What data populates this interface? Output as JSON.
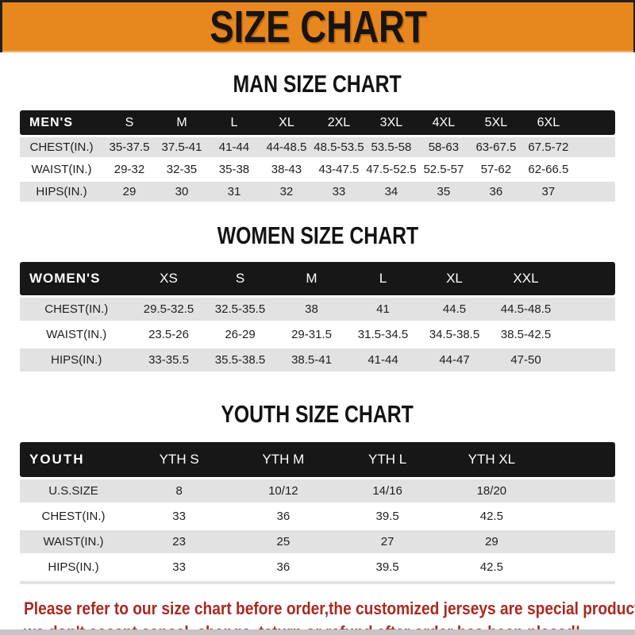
{
  "banner": {
    "title": "SIZE CHART",
    "bg_color": "#E8871E",
    "text_color": "#181410"
  },
  "colors": {
    "header_bg": "#171717",
    "header_text": "#FFFFFF",
    "row_gray": "#E2E2E2",
    "row_white": "#FFFFFF",
    "cell_text": "#1F1F1F",
    "notice_red": "#A82A22",
    "bottom_bar_gray": "#C5C5C5"
  },
  "sections": [
    {
      "id": "men",
      "heading": "MAN SIZE CHART",
      "table": {
        "header": [
          "MEN'S",
          "S",
          "M",
          "L",
          "XL",
          "2XL",
          "3XL",
          "4XL",
          "5XL",
          "6XL"
        ],
        "rows": [
          {
            "label": "CHEST(IN.)",
            "values": [
              "35-37.5",
              "37.5-41",
              "41-44",
              "44-48.5",
              "48.5-53.5",
              "53.5-58",
              "58-63",
              "63-67.5",
              "67.5-72"
            ]
          },
          {
            "label": "WAIST(IN.)",
            "values": [
              "29-32",
              "32-35",
              "35-38",
              "38-43",
              "43-47.5",
              "47.5-52.5",
              "52.5-57",
              "57-62",
              "62-66.5"
            ]
          },
          {
            "label": "HIPS(IN.)",
            "values": [
              "29",
              "30",
              "31",
              "32",
              "33",
              "34",
              "35",
              "36",
              "37"
            ]
          }
        ]
      }
    },
    {
      "id": "women",
      "heading": "WOMEN SIZE CHART",
      "table": {
        "header": [
          "WOMEN'S",
          "XS",
          "S",
          "M",
          "L",
          "XL",
          "XXL"
        ],
        "rows": [
          {
            "label": "CHEST(IN.)",
            "values": [
              "29.5-32.5",
              "32.5-35.5",
              "38",
              "41",
              "44.5",
              "44.5-48.5"
            ]
          },
          {
            "label": "WAIST(IN.)",
            "values": [
              "23.5-26",
              "26-29",
              "29-31.5",
              "31.5-34.5",
              "34.5-38.5",
              "38.5-42.5"
            ]
          },
          {
            "label": "HIPS(IN.)",
            "values": [
              "33-35.5",
              "35.5-38.5",
              "38.5-41",
              "41-44",
              "44-47",
              "47-50"
            ]
          }
        ]
      }
    },
    {
      "id": "youth",
      "heading": "YOUTH SIZE CHART",
      "table": {
        "header": [
          "YOUTH",
          "YTH S",
          "YTH M",
          "YTH L",
          "YTH XL"
        ],
        "rows": [
          {
            "label": "U.S.SIZE",
            "values": [
              "8",
              "10/12",
              "14/16",
              "18/20"
            ]
          },
          {
            "label": "CHEST(IN.)",
            "values": [
              "33",
              "36",
              "39.5",
              "42.5"
            ]
          },
          {
            "label": "WAIST(IN.)",
            "values": [
              "23",
              "25",
              "27",
              "29"
            ]
          },
          {
            "label": "HIPS(IN.)",
            "values": [
              "33",
              "36",
              "39.5",
              "42.5"
            ]
          }
        ]
      }
    }
  ],
  "footer": {
    "lines": [
      "Please refer to our size chart before order,the customized jerseys are special products,",
      "we don't accept cancel, change, teturn or refund after order has been placed!"
    ]
  }
}
